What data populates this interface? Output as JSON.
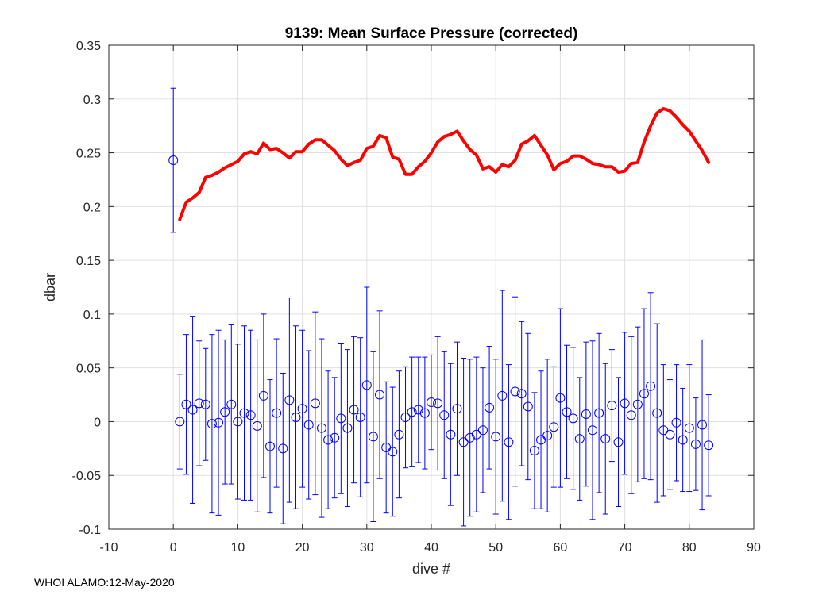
{
  "chart_data": {
    "type": "line",
    "title": "9139: Mean Surface Pressure (corrected)",
    "xlabel": "dive #",
    "ylabel": "dbar",
    "xlim": [
      -10,
      90
    ],
    "ylim": [
      -0.1,
      0.35
    ],
    "xticks": [
      "-10",
      "0",
      "10",
      "20",
      "30",
      "40",
      "50",
      "60",
      "70",
      "80",
      "90"
    ],
    "yticks": [
      "-0.1",
      "-0.05",
      "0",
      "0.05",
      "0.1",
      "0.15",
      "0.2",
      "0.25",
      "0.3",
      "0.35"
    ],
    "grid": true,
    "series": [
      {
        "name": "smoothed mean pressure",
        "style": "line",
        "color": "#ff0000",
        "x": [
          1,
          2,
          3,
          4,
          5,
          6,
          7,
          8,
          9,
          10,
          11,
          12,
          13,
          14,
          15,
          16,
          17,
          18,
          19,
          20,
          21,
          22,
          23,
          24,
          25,
          26,
          27,
          28,
          29,
          30,
          31,
          32,
          33,
          34,
          35,
          36,
          37,
          38,
          39,
          40,
          41,
          42,
          43,
          44,
          45,
          46,
          47,
          48,
          49,
          50,
          51,
          52,
          53,
          54,
          55,
          56,
          57,
          58,
          59,
          60,
          61,
          62,
          63,
          64,
          65,
          66,
          67,
          68,
          69,
          70,
          71,
          72,
          73,
          74,
          75,
          76,
          77,
          78,
          79,
          80,
          81,
          82,
          83
        ],
        "values": [
          0.188,
          0.204,
          0.208,
          0.213,
          0.227,
          0.229,
          0.232,
          0.236,
          0.239,
          0.242,
          0.249,
          0.251,
          0.249,
          0.259,
          0.253,
          0.254,
          0.25,
          0.245,
          0.251,
          0.251,
          0.258,
          0.262,
          0.262,
          0.257,
          0.252,
          0.244,
          0.238,
          0.241,
          0.243,
          0.254,
          0.256,
          0.266,
          0.264,
          0.246,
          0.244,
          0.23,
          0.23,
          0.237,
          0.242,
          0.25,
          0.26,
          0.265,
          0.267,
          0.27,
          0.261,
          0.253,
          0.248,
          0.235,
          0.237,
          0.232,
          0.239,
          0.237,
          0.243,
          0.258,
          0.261,
          0.266,
          0.257,
          0.248,
          0.234,
          0.24,
          0.242,
          0.247,
          0.247,
          0.244,
          0.24,
          0.239,
          0.237,
          0.237,
          0.232,
          0.233,
          0.24,
          0.241,
          0.26,
          0.275,
          0.287,
          0.291,
          0.289,
          0.283,
          0.276,
          0.27,
          0.261,
          0.252,
          0.241
        ]
      },
      {
        "name": "reference dive 0",
        "style": "errorbar",
        "color": "#0000ff",
        "x": [
          0
        ],
        "values": [
          0.243
        ],
        "errors": [
          0.067
        ]
      },
      {
        "name": "per-dive mean pressure",
        "style": "errorbar",
        "color": "#0000ff",
        "x": [
          1,
          2,
          3,
          4,
          5,
          6,
          7,
          8,
          9,
          10,
          11,
          12,
          13,
          14,
          15,
          16,
          17,
          18,
          19,
          20,
          21,
          22,
          23,
          24,
          25,
          26,
          27,
          28,
          29,
          30,
          31,
          32,
          33,
          34,
          35,
          36,
          37,
          38,
          39,
          40,
          41,
          42,
          43,
          44,
          45,
          46,
          47,
          48,
          49,
          50,
          51,
          52,
          53,
          54,
          55,
          56,
          57,
          58,
          59,
          60,
          61,
          62,
          63,
          64,
          65,
          66,
          67,
          68,
          69,
          70,
          71,
          72,
          73,
          74,
          75,
          76,
          77,
          78,
          79,
          80,
          81,
          82,
          83
        ],
        "values": [
          0.0,
          0.016,
          0.011,
          0.017,
          0.016,
          -0.002,
          -0.001,
          0.009,
          0.016,
          0.0,
          0.008,
          0.006,
          -0.004,
          0.024,
          -0.023,
          0.008,
          -0.025,
          0.02,
          0.004,
          0.012,
          -0.003,
          0.017,
          -0.006,
          -0.017,
          -0.015,
          0.003,
          -0.006,
          0.011,
          0.004,
          0.034,
          -0.014,
          0.025,
          -0.024,
          -0.028,
          -0.012,
          0.004,
          0.009,
          0.011,
          0.008,
          0.018,
          0.017,
          0.006,
          -0.012,
          0.012,
          -0.019,
          -0.015,
          -0.012,
          -0.008,
          0.013,
          -0.014,
          0.024,
          -0.019,
          0.028,
          0.026,
          0.014,
          -0.027,
          -0.017,
          -0.013,
          -0.005,
          0.022,
          0.009,
          0.003,
          -0.016,
          0.007,
          -0.008,
          0.008,
          -0.016,
          0.015,
          -0.019,
          0.017,
          0.006,
          0.016,
          0.026,
          0.033,
          0.008,
          -0.008,
          -0.012,
          -0.001,
          -0.017,
          -0.006,
          -0.021,
          -0.003,
          -0.022
        ],
        "errors": [
          0.044,
          0.065,
          0.087,
          0.058,
          0.052,
          0.083,
          0.086,
          0.067,
          0.074,
          0.072,
          0.081,
          0.079,
          0.08,
          0.076,
          0.062,
          0.069,
          0.07,
          0.095,
          0.085,
          0.073,
          0.069,
          0.085,
          0.083,
          0.064,
          0.056,
          0.07,
          0.073,
          0.068,
          0.074,
          0.091,
          0.079,
          0.078,
          0.061,
          0.06,
          0.059,
          0.047,
          0.051,
          0.049,
          0.052,
          0.044,
          0.062,
          0.059,
          0.066,
          0.062,
          0.078,
          0.073,
          0.072,
          0.058,
          0.057,
          0.072,
          0.098,
          0.072,
          0.088,
          0.067,
          0.068,
          0.054,
          0.064,
          0.071,
          0.056,
          0.083,
          0.062,
          0.066,
          0.057,
          0.067,
          0.083,
          0.074,
          0.07,
          0.052,
          0.06,
          0.066,
          0.073,
          0.072,
          0.079,
          0.087,
          0.083,
          0.061,
          0.051,
          0.054,
          0.048,
          0.059,
          0.043,
          0.079,
          0.047
        ]
      }
    ]
  },
  "footer": {
    "credit": "WHOI ALAMO:12-May-2020"
  }
}
